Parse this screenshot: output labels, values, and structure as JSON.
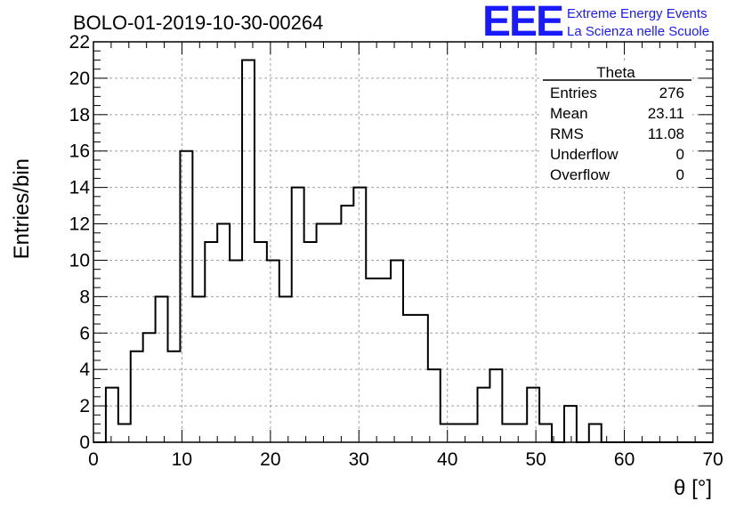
{
  "header": {
    "run_title": "BOLO-01-2019-10-30-00264",
    "logo_text": "EEE",
    "logo_line1": "Extreme Energy Events",
    "logo_line2": "La Scienza nelle Scuole"
  },
  "stats": {
    "title": "Theta",
    "rows": [
      {
        "label": "Entries",
        "value": "276"
      },
      {
        "label": "Mean",
        "value": "23.11"
      },
      {
        "label": "RMS",
        "value": "11.08"
      },
      {
        "label": "Underflow",
        "value": "0"
      },
      {
        "label": "Overflow",
        "value": "0"
      }
    ]
  },
  "chart_data": {
    "type": "bar",
    "style": "step-histogram",
    "xlabel": "θ [°]",
    "ylabel": "Entries/bin",
    "xlim": [
      0,
      70
    ],
    "ylim": [
      0,
      22
    ],
    "bin_width": 1.4,
    "x_ticks": [
      0,
      10,
      20,
      30,
      40,
      50,
      60,
      70
    ],
    "y_ticks": [
      0,
      2,
      4,
      6,
      8,
      10,
      12,
      14,
      16,
      18,
      20,
      22
    ],
    "grid": true,
    "bin_edges_start": 0,
    "values": [
      0,
      3,
      1,
      5,
      6,
      8,
      5,
      16,
      8,
      11,
      12,
      10,
      21,
      11,
      10,
      8,
      14,
      11,
      12,
      12,
      13,
      14,
      9,
      9,
      10,
      7,
      7,
      4,
      1,
      1,
      1,
      3,
      4,
      1,
      1,
      3,
      1,
      0,
      2,
      0,
      1,
      0,
      0,
      0,
      0,
      0,
      0,
      0,
      0,
      0
    ]
  }
}
